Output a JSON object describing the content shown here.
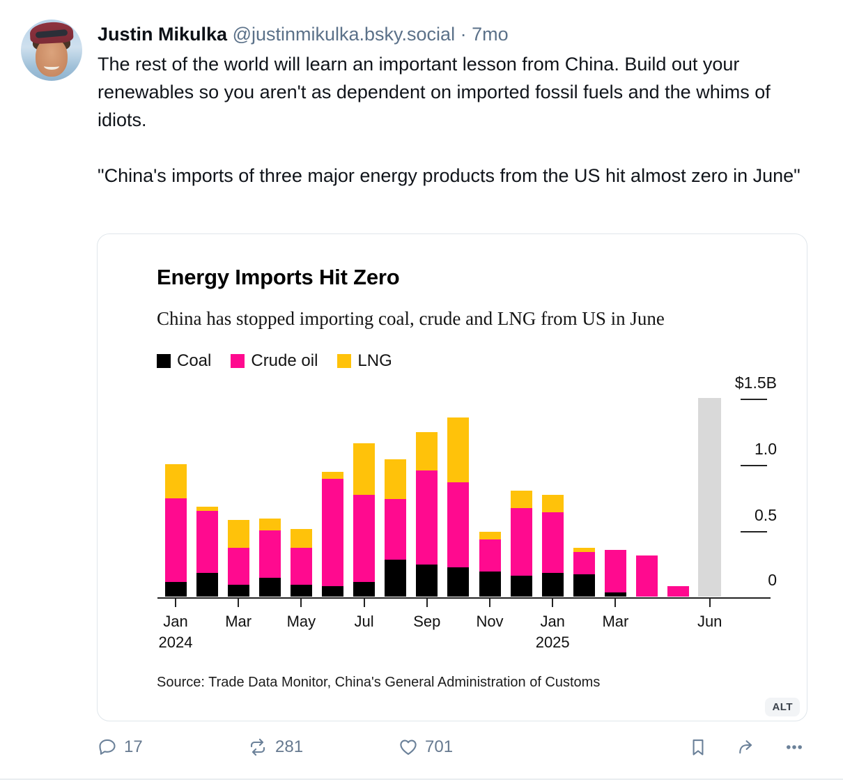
{
  "post": {
    "author_name": "Justin Mikulka",
    "author_handle": "@justinmikulka.bsky.social",
    "separator": "·",
    "age": "7mo",
    "body": "The rest of the world will learn an important lesson from China. Build out your renewables so you aren't as dependent on imported fossil fuels and the whims of idiots.\n\n\"China's imports of three major energy products from the US hit almost zero in June\""
  },
  "image_card": {
    "alt_badge": "ALT"
  },
  "chart_data": {
    "type": "bar",
    "stacked": true,
    "title": "Energy Imports Hit Zero",
    "subtitle": "China has stopped importing coal, crude and LNG from US in June",
    "source": "Source: Trade Data Monitor, China's General Administration of Customs",
    "unit": "$B",
    "ylim": [
      0,
      1.5
    ],
    "legend_position": "top-left",
    "categories": [
      "Jan 2024",
      "Feb 2024",
      "Mar 2024",
      "Apr 2024",
      "May 2024",
      "Jun 2024",
      "Jul 2024",
      "Aug 2024",
      "Sep 2024",
      "Oct 2024",
      "Nov 2024",
      "Dec 2024",
      "Jan 2025",
      "Feb 2025",
      "Mar 2025",
      "Apr 2025",
      "May 2025",
      "Jun 2025"
    ],
    "series": [
      {
        "name": "Coal",
        "color": "#000000",
        "values": [
          0.11,
          0.18,
          0.09,
          0.14,
          0.09,
          0.08,
          0.11,
          0.28,
          0.24,
          0.22,
          0.19,
          0.16,
          0.18,
          0.17,
          0.03,
          0,
          0,
          0
        ]
      },
      {
        "name": "Crude oil",
        "color": "#ff0a8f",
        "values": [
          0.63,
          0.47,
          0.28,
          0.36,
          0.28,
          0.81,
          0.66,
          0.46,
          0.71,
          0.64,
          0.24,
          0.51,
          0.46,
          0.17,
          0.32,
          0.31,
          0.08,
          0
        ]
      },
      {
        "name": "LNG",
        "color": "#ffc20a",
        "values": [
          0.26,
          0.03,
          0.21,
          0.09,
          0.14,
          0.05,
          0.39,
          0.3,
          0.29,
          0.49,
          0.06,
          0.13,
          0.13,
          0.03,
          0,
          0,
          0,
          0
        ]
      }
    ],
    "highlight": {
      "month_index": 17,
      "label": "Jun 2025",
      "color": "#d9d9d9",
      "column_top": 1.5
    },
    "y_axis": {
      "ticks": [
        {
          "label": "$1.5B",
          "value": 1.5,
          "dash": true
        },
        {
          "label": "1.0",
          "value": 1.0,
          "dash": true
        },
        {
          "label": "0.5",
          "value": 0.5,
          "dash": true
        },
        {
          "label": "0",
          "value": 0,
          "dash": false
        }
      ]
    },
    "x_axis": {
      "ticks": [
        {
          "month_index": 0,
          "label": "Jan",
          "year": "2024"
        },
        {
          "month_index": 2,
          "label": "Mar"
        },
        {
          "month_index": 4,
          "label": "May"
        },
        {
          "month_index": 6,
          "label": "Jul"
        },
        {
          "month_index": 8,
          "label": "Sep"
        },
        {
          "month_index": 10,
          "label": "Nov"
        },
        {
          "month_index": 12,
          "label": "Jan",
          "year": "2025"
        },
        {
          "month_index": 14,
          "label": "Mar"
        },
        {
          "month_index": 17,
          "label": "Jun"
        }
      ]
    }
  },
  "actions": {
    "reply": {
      "count": "17"
    },
    "repost": {
      "count": "281"
    },
    "like": {
      "count": "701"
    }
  }
}
